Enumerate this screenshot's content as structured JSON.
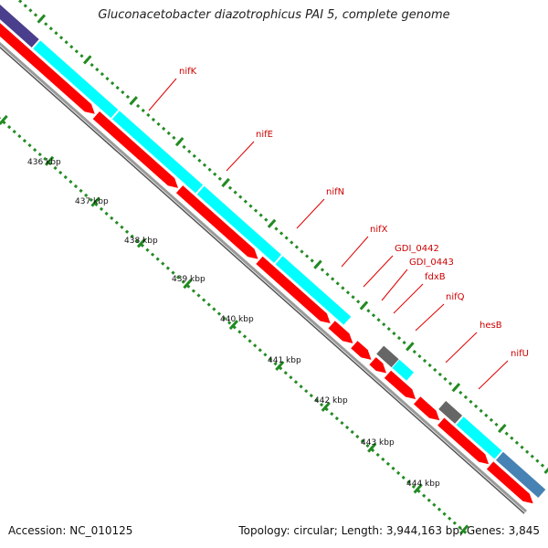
{
  "map": {
    "title": "Gluconacetobacter diazotrophicus PAI 5, complete genome",
    "accession_text": "Accession: NC_010125",
    "summary_text": "Topology: circular; Length: 3,944,163 bp; Genes: 3,845",
    "colors": {
      "forward_feature": "#00ffff",
      "reverse_feature": "#ff0000",
      "other_feature": "#666666",
      "backbone": "#888888",
      "ticks": "#228b22",
      "label": "#cc0000",
      "prev_feature": "#4a3f8c",
      "next_feature": "#4682b4"
    },
    "ruler": {
      "unit": "kbp",
      "labels": [
        "436 kbp",
        "437 kbp",
        "438 kbp",
        "439 kbp",
        "440 kbp",
        "441 kbp",
        "442 kbp",
        "443 kbp",
        "444 kbp"
      ]
    },
    "gene_labels": [
      "nifK",
      "nifE",
      "nifN",
      "nifX",
      "GDI_0442",
      "GDI_0443",
      "fdxB",
      "nifQ",
      "hesB",
      "nifU"
    ]
  }
}
